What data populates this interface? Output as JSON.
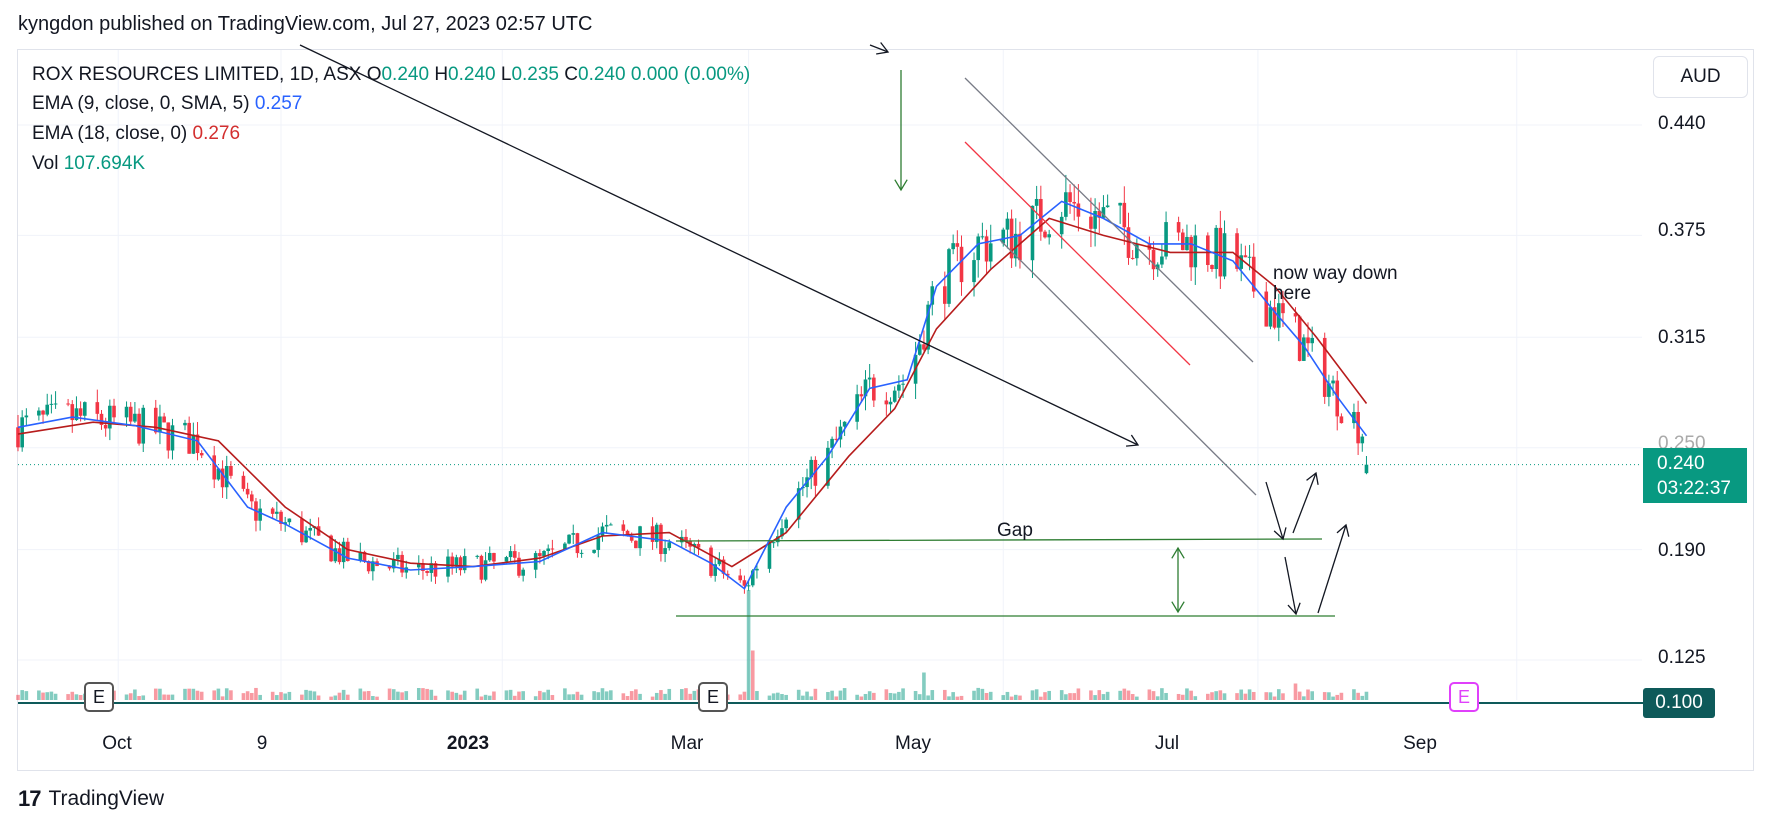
{
  "header": {
    "published": "kyngdon published on TradingView.com, Jul 27, 2023 02:57 UTC"
  },
  "legend": {
    "symbol": "ROX RESOURCES LIMITED, 1D, ASX",
    "o_label": "O",
    "o": "0.240",
    "h_label": "H",
    "h": "0.240",
    "l_label": "L",
    "l": "0.235",
    "c_label": "C",
    "c": "0.240",
    "change": "0.000 (0.00%)",
    "ema9_label": "EMA (9, close, 0, SMA, 5)",
    "ema9": "0.257",
    "ema18_label": "EMA (18, close, 0)",
    "ema18": "0.276",
    "vol_label": "Vol",
    "vol": "107.694K"
  },
  "currency": "AUD",
  "price_tag": {
    "price": "0.240",
    "countdown": "03:22:37"
  },
  "volume_tag": "0.100",
  "annotations": {
    "gap": "Gap",
    "note": "now way down\nhere"
  },
  "earnings_badge": "E",
  "brand": "TradingView",
  "colors": {
    "up": "#089981",
    "down": "#f23645",
    "ema9": "#2962ff",
    "ema18": "#b71c1c",
    "annotation_green": "#2e7d32"
  },
  "chart_data": {
    "type": "candlestick",
    "y_ticks": [
      "0.440",
      "0.375",
      "0.315",
      "0.250",
      "0.190",
      "0.125"
    ],
    "y_range": [
      0.098,
      0.48
    ],
    "x_ticks": [
      {
        "label": "Oct",
        "date": "2022-10-01"
      },
      {
        "label": "9",
        "date": "2022-11-09"
      },
      {
        "label": "2023",
        "date": "2023-01-01",
        "bold": true
      },
      {
        "label": "Mar",
        "date": "2023-03-01"
      },
      {
        "label": "May",
        "date": "2023-05-01"
      },
      {
        "label": "Jul",
        "date": "2023-07-01"
      },
      {
        "label": "Sep",
        "date": "2023-09-01"
      }
    ],
    "x_range": [
      "2022-09-07",
      "2023-10-01"
    ],
    "last_close": 0.24,
    "earnings_dates": [
      "2022-10-01",
      "2023-03-02"
    ],
    "future_earnings_date": "2023-09-01",
    "ema9_path": [
      [
        "2022-09-07",
        0.262
      ],
      [
        "2022-09-20",
        0.268
      ],
      [
        "2022-10-05",
        0.263
      ],
      [
        "2022-10-20",
        0.254
      ],
      [
        "2022-11-01",
        0.215
      ],
      [
        "2022-11-10",
        0.205
      ],
      [
        "2022-11-25",
        0.185
      ],
      [
        "2022-12-10",
        0.178
      ],
      [
        "2022-12-25",
        0.18
      ],
      [
        "2023-01-10",
        0.183
      ],
      [
        "2023-01-25",
        0.2
      ],
      [
        "2023-02-10",
        0.195
      ],
      [
        "2023-02-20",
        0.182
      ],
      [
        "2023-02-28",
        0.167
      ],
      [
        "2023-03-10",
        0.215
      ],
      [
        "2023-03-20",
        0.245
      ],
      [
        "2023-03-30",
        0.285
      ],
      [
        "2023-04-08",
        0.29
      ],
      [
        "2023-04-15",
        0.345
      ],
      [
        "2023-04-25",
        0.37
      ],
      [
        "2023-05-05",
        0.375
      ],
      [
        "2023-05-15",
        0.395
      ],
      [
        "2023-05-25",
        0.385
      ],
      [
        "2023-06-05",
        0.37
      ],
      [
        "2023-06-15",
        0.37
      ],
      [
        "2023-06-25",
        0.36
      ],
      [
        "2023-07-05",
        0.33
      ],
      [
        "2023-07-12",
        0.31
      ],
      [
        "2023-07-20",
        0.28
      ],
      [
        "2023-07-27",
        0.257
      ]
    ],
    "ema18_path": [
      [
        "2022-09-07",
        0.258
      ],
      [
        "2022-09-25",
        0.265
      ],
      [
        "2022-10-10",
        0.262
      ],
      [
        "2022-10-25",
        0.254
      ],
      [
        "2022-11-10",
        0.215
      ],
      [
        "2022-11-25",
        0.19
      ],
      [
        "2022-12-10",
        0.182
      ],
      [
        "2022-12-25",
        0.18
      ],
      [
        "2023-01-10",
        0.185
      ],
      [
        "2023-01-25",
        0.198
      ],
      [
        "2023-02-10",
        0.2
      ],
      [
        "2023-02-25",
        0.18
      ],
      [
        "2023-03-10",
        0.2
      ],
      [
        "2023-03-25",
        0.245
      ],
      [
        "2023-04-05",
        0.273
      ],
      [
        "2023-04-15",
        0.32
      ],
      [
        "2023-04-28",
        0.355
      ],
      [
        "2023-05-12",
        0.385
      ],
      [
        "2023-05-25",
        0.375
      ],
      [
        "2023-06-10",
        0.365
      ],
      [
        "2023-06-25",
        0.365
      ],
      [
        "2023-07-05",
        0.345
      ],
      [
        "2023-07-15",
        0.315
      ],
      [
        "2023-07-27",
        0.276
      ]
    ],
    "volume_spikes": [
      {
        "date": "2023-03-01",
        "volume_frac": 1.0,
        "dir": "up"
      },
      {
        "date": "2023-03-02",
        "volume_frac": 0.45,
        "dir": "down"
      },
      {
        "date": "2023-04-12",
        "volume_frac": 0.25,
        "dir": "up"
      },
      {
        "date": "2023-07-10",
        "volume_frac": 0.15,
        "dir": "down"
      }
    ]
  }
}
